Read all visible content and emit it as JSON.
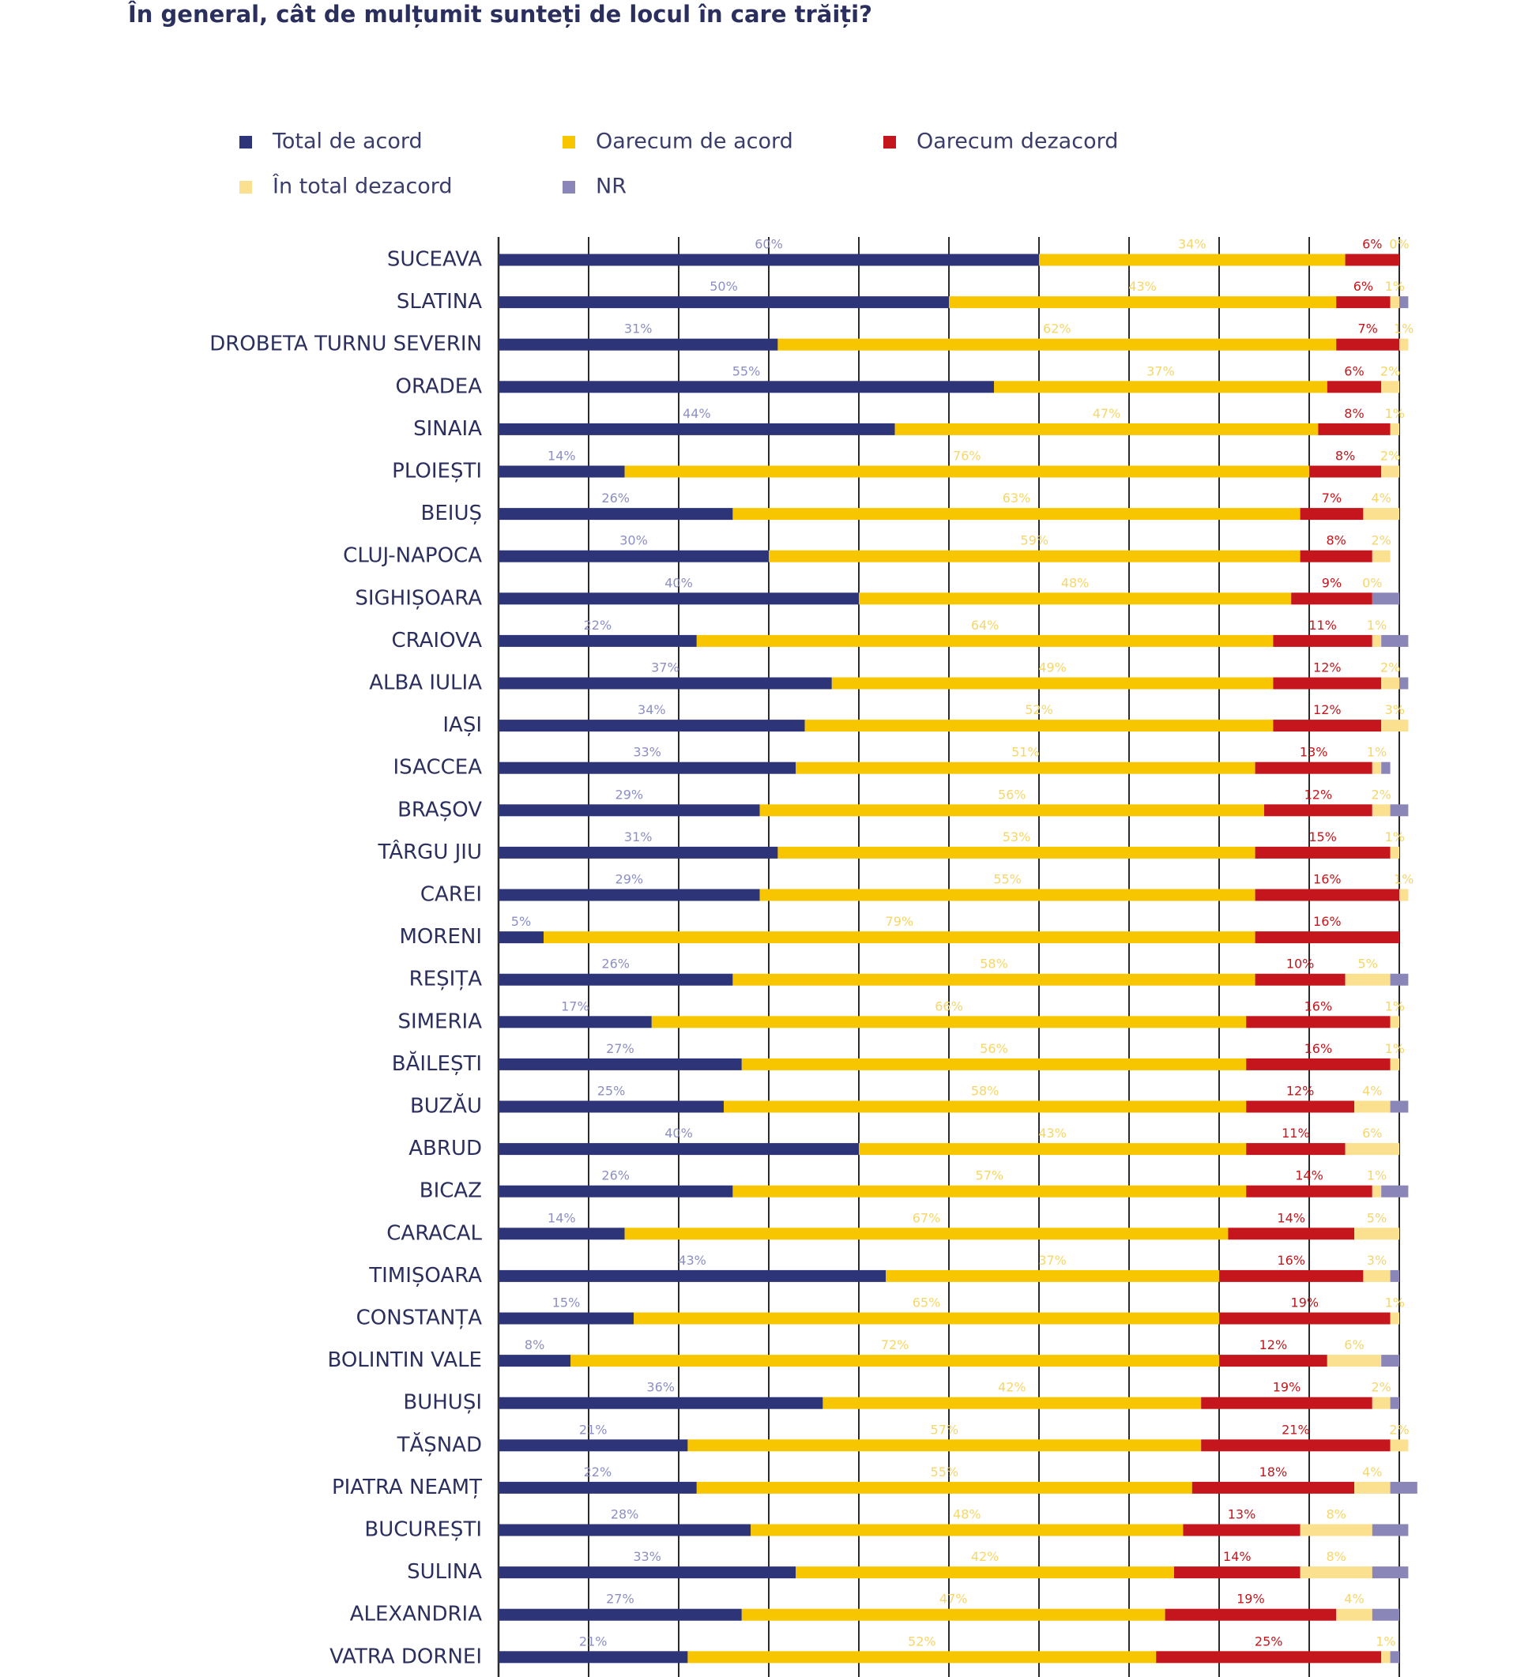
{
  "chart_data": {
    "type": "stacked-bar-horizontal",
    "title": "În general, cât de mulțumit sunteți de locul în care trăiți?",
    "categories": [
      "SUCEAVA",
      "SLATINA",
      "DROBETA TURNU SEVERIN",
      "ORADEA",
      "SINAIA",
      "PLOIEȘTI",
      "BEIUȘ",
      "CLUJ-NAPOCA",
      "SIGHIȘOARA",
      "CRAIOVA",
      "ALBA IULIA",
      "IAȘI",
      "ISACCEA",
      "BRAȘOV",
      "TÂRGU JIU",
      "CAREI",
      "MORENI",
      "REȘIȚA",
      "SIMERIA",
      "BĂILEȘTI",
      "BUZĂU",
      "ABRUD",
      "BICAZ",
      "CARACAL",
      "TIMIȘOARA",
      "CONSTANȚA",
      "BOLINTIN VALE",
      "BUHUȘI",
      "TĂȘNAD",
      "PIATRA NEAMȚ",
      "BUCUREȘTI",
      "SULINA",
      "ALEXANDRIA",
      "VATRA DORNEI"
    ],
    "xlim": [
      0,
      100
    ],
    "xticks": [
      0,
      10,
      20,
      30,
      40,
      50,
      60,
      70,
      80,
      90,
      100
    ],
    "grid": true,
    "series": [
      {
        "name": "Total de acord",
        "color": "#2e3478",
        "label_color": "#8c8fc4",
        "values": [
          60,
          50,
          31,
          55,
          44,
          14,
          26,
          30,
          40,
          22,
          37,
          34,
          33,
          29,
          31,
          29,
          5,
          26,
          17,
          27,
          25,
          40,
          26,
          14,
          43,
          15,
          8,
          36,
          21,
          22,
          28,
          33,
          27,
          21
        ],
        "value_labels": [
          "60%",
          "50%",
          "31%",
          "55%",
          "44%",
          "14%",
          "26%",
          "30%",
          "40%",
          "22%",
          "37%",
          "34%",
          "33%",
          "29%",
          "31%",
          "29%",
          "5%",
          "26%",
          "17%",
          "27%",
          "25%",
          "40%",
          "26%",
          "14%",
          "43%",
          "15%",
          "8%",
          "36%",
          "21%",
          "22%",
          "28%",
          "33%",
          "27%",
          "21%"
        ]
      },
      {
        "name": "Oarecum de acord",
        "color": "#f7c600",
        "label_color": "#f5d66a",
        "values": [
          34,
          43,
          62,
          37,
          47,
          76,
          63,
          59,
          48,
          64,
          49,
          52,
          51,
          56,
          53,
          55,
          79,
          58,
          66,
          56,
          58,
          43,
          57,
          67,
          37,
          65,
          72,
          42,
          57,
          55,
          48,
          42,
          47,
          52
        ],
        "value_labels": [
          "34%",
          "43%",
          "62%",
          "37%",
          "47%",
          "76%",
          "63%",
          "59%",
          "48%",
          "64%",
          "49%",
          "52%",
          "51%",
          "56%",
          "53%",
          "55%",
          "79%",
          "58%",
          "66%",
          "56%",
          "58%",
          "43%",
          "57%",
          "67%",
          "37%",
          "65%",
          "72%",
          "42%",
          "57%",
          "55%",
          "48%",
          "42%",
          "47%",
          "52%"
        ]
      },
      {
        "name": "Oarecum dezacord",
        "color": "#c4161c",
        "label_color": "#c4161c",
        "values": [
          6,
          6,
          7,
          6,
          8,
          8,
          7,
          8,
          9,
          11,
          12,
          12,
          13,
          12,
          15,
          16,
          16,
          10,
          16,
          16,
          12,
          11,
          14,
          14,
          16,
          19,
          12,
          19,
          21,
          18,
          13,
          14,
          19,
          25
        ],
        "value_labels": [
          "6%",
          "6%",
          "7%",
          "6%",
          "8%",
          "8%",
          "7%",
          "8%",
          "9%",
          "11%",
          "12%",
          "12%",
          "13%",
          "12%",
          "15%",
          "16%",
          "16%",
          "10%",
          "16%",
          "16%",
          "12%",
          "11%",
          "14%",
          "14%",
          "16%",
          "19%",
          "12%",
          "19%",
          "21%",
          "18%",
          "13%",
          "14%",
          "19%",
          "25%"
        ]
      },
      {
        "name": "În total dezacord",
        "color": "#fbe08f",
        "label_color": "#f5d66a",
        "values": [
          0,
          1,
          1,
          2,
          1,
          2,
          4,
          2,
          0,
          1,
          2,
          3,
          1,
          2,
          1,
          1,
          0,
          5,
          1,
          1,
          4,
          6,
          1,
          5,
          3,
          1,
          6,
          2,
          2,
          4,
          8,
          8,
          4,
          1
        ],
        "value_labels": [
          "0%",
          "1%",
          "1%",
          "2%",
          "1%",
          "2%",
          "4%",
          "2%",
          "0%",
          "1%",
          "2%",
          "3%",
          "1%",
          "2%",
          "1%",
          "1%",
          null,
          "5%",
          "1%",
          "1%",
          "4%",
          "6%",
          "1%",
          "5%",
          "3%",
          "1%",
          "6%",
          "2%",
          "2%",
          "4%",
          "8%",
          "8%",
          "4%",
          "1%"
        ]
      },
      {
        "name": "NR",
        "color": "#8b86b8",
        "values": [
          0,
          1,
          0,
          0,
          0,
          0,
          0,
          0,
          3,
          3,
          1,
          0,
          1,
          2,
          0,
          0,
          0,
          2,
          0,
          0,
          2,
          0,
          3,
          0,
          1,
          0,
          2,
          1,
          0,
          3,
          4,
          4,
          3,
          1
        ]
      }
    ]
  }
}
